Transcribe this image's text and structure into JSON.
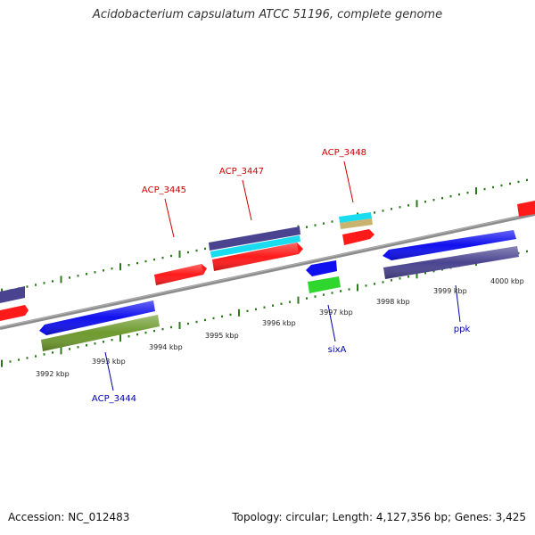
{
  "title": "Acidobacterium capsulatum ATCC 51196, complete genome",
  "footer": {
    "accession": "Accession: NC_012483",
    "summary": "Topology: circular; Length: 4,127,356 bp; Genes: 3,425"
  },
  "colors": {
    "backbone": "#8c8c8c",
    "tick": "#2a7a1a",
    "label_forward": "#cc0000",
    "label_reverse": "#0000aa",
    "gene_red": "#ff1a1a",
    "gene_blue": "#1010ee",
    "gene_slate": "#4a4490",
    "gene_cyan": "#19dcf0",
    "gene_tan": "#c8b46e",
    "gene_green": "#2ed62e",
    "gene_olive": "#6e9a2e"
  },
  "scale_labels": [
    "3992 kbp",
    "3993 kbp",
    "3994 kbp",
    "3995 kbp",
    "3996 kbp",
    "3997 kbp",
    "3998 kbp",
    "3999 kbp",
    "4000 kbp"
  ],
  "gene_labels": {
    "acp_3445": "ACP_3445",
    "acp_3447": "ACP_3447",
    "acp_3448": "ACP_3448",
    "acp_3444": "ACP_3444",
    "sixA": "sixA",
    "ppk": "ppk"
  }
}
